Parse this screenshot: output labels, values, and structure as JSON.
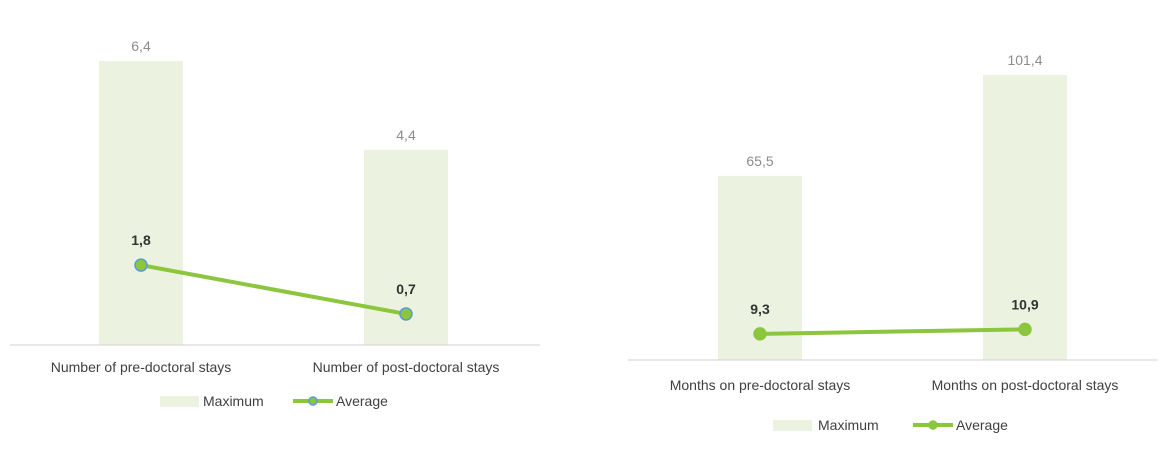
{
  "chart_data": [
    {
      "type": "bar",
      "categories": [
        "Number of pre-doctoral stays",
        "Number of post-doctoral stays"
      ],
      "series": [
        {
          "name": "Maximum",
          "type": "bar",
          "values": [
            6.4,
            4.4
          ],
          "labels": [
            "6,4",
            "4,4"
          ],
          "color": "#ebf3e0"
        },
        {
          "name": "Average",
          "type": "line",
          "values": [
            1.8,
            0.7
          ],
          "labels": [
            "1,8",
            "0,7"
          ],
          "color": "#8cc63e",
          "marker_fill": "#8cc63e",
          "marker_stroke": "#5b9bd5"
        }
      ],
      "ylim": [
        0,
        6.4
      ],
      "legend": "bottom"
    },
    {
      "type": "bar",
      "categories": [
        "Months on pre-doctoral stays",
        "Months on post-doctoral stays"
      ],
      "series": [
        {
          "name": "Maximum",
          "type": "bar",
          "values": [
            65.5,
            101.4
          ],
          "labels": [
            "65,5",
            "101,4"
          ],
          "color": "#ebf3e0"
        },
        {
          "name": "Average",
          "type": "line",
          "values": [
            9.3,
            10.9
          ],
          "labels": [
            "9,3",
            "10,9"
          ],
          "color": "#8cc63e",
          "marker_fill": "#8cc63e",
          "marker_stroke": "#8cc63e"
        }
      ],
      "ylim": [
        0,
        101.4
      ],
      "legend": "bottom"
    }
  ]
}
